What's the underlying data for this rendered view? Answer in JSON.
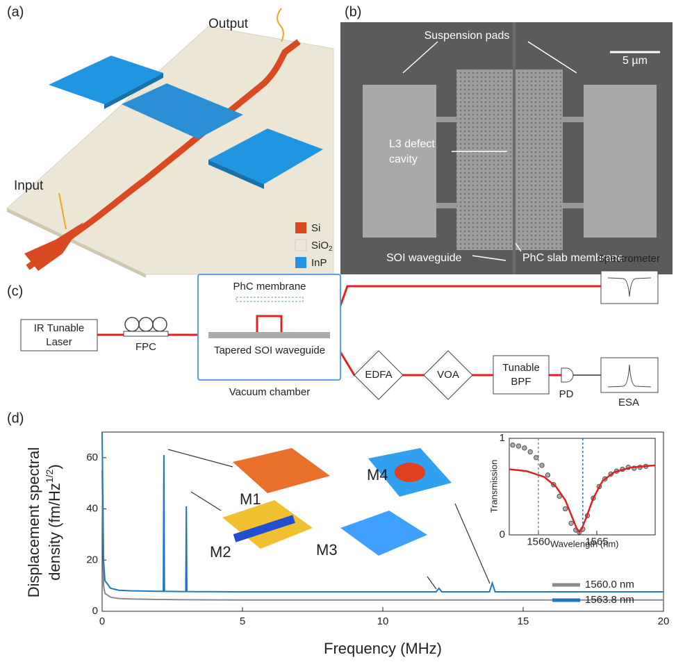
{
  "panel_a": {
    "label": "(a)",
    "output": "Output",
    "input": "Input",
    "legend": [
      {
        "text": "Si"
      },
      {
        "text": "SiO",
        "sub": "2"
      },
      {
        "text": "InP"
      }
    ]
  },
  "panel_b": {
    "label": "(b)",
    "scale_bar": "5 µm",
    "suspension_pads": "Suspension pads",
    "cavity_line1": "L3 defect",
    "cavity_line2": "cavity",
    "waveguide": "SOI waveguide",
    "membrane": "PhC slab membrane"
  },
  "panel_c": {
    "label": "(c)",
    "laser_line1": "IR Tunable",
    "laser_line2": "Laser",
    "fpc": "FPC",
    "phc_membrane": "PhC membrane",
    "tapered_waveguide": "Tapered SOI waveguide",
    "vacuum_chamber": "Vacuum chamber",
    "edfa": "EDFA",
    "voa": "VOA",
    "bpf_line1": "Tunable",
    "bpf_line2": "BPF",
    "pd": "PD",
    "esa": "ESA",
    "spectrometer": "Spectrometer"
  },
  "panel_d": {
    "label": "(d)",
    "modes": [
      "M1",
      "M2",
      "M3",
      "M4"
    ]
  },
  "chart_data": [
    {
      "type": "line",
      "xlabel": "Frequency (MHz)",
      "ylabel_line1": "Displacement spectral",
      "ylabel_line2": "density (fm/Hz",
      "ylabel_sup": "1/2",
      "ylabel_end": ")",
      "x": [
        0,
        0.05,
        0.1,
        0.3,
        0.6,
        1,
        2,
        2.18,
        2.2,
        2.22,
        2.9,
        2.98,
        3.0,
        3.02,
        5,
        8,
        11.9,
        12,
        12.1,
        13.8,
        13.9,
        14,
        17,
        20
      ],
      "series": [
        {
          "name": "1560.0 nm",
          "color": "#8a8a8a",
          "values": [
            55,
            10,
            7,
            5.5,
            5,
            4.8,
            4.6,
            4.6,
            4.6,
            4.6,
            4.5,
            4.5,
            4.5,
            4.5,
            4.4,
            4.4,
            4.4,
            4.4,
            4.4,
            4.4,
            4.4,
            4.4,
            4.4,
            4.4
          ]
        },
        {
          "name": "1563.8 nm",
          "color": "#1f77c0",
          "values": [
            70,
            20,
            12,
            9,
            8.2,
            8,
            7.8,
            7.8,
            61,
            7.8,
            7.7,
            7.7,
            41,
            7.7,
            7.6,
            7.6,
            7.6,
            9,
            7.6,
            7.6,
            11,
            7.6,
            7.6,
            7.6
          ]
        }
      ],
      "xlim": [
        0,
        20
      ],
      "xticks": [
        0,
        5,
        10,
        15,
        20
      ],
      "ylim": [
        0,
        70
      ],
      "yticks": [
        0,
        20,
        40,
        60
      ],
      "legend": "lower right"
    },
    {
      "type": "scatter",
      "xlabel": "Wavelength (nm)",
      "ylabel": "Transmission",
      "x": [
        1557.8,
        1558.3,
        1558.8,
        1559.3,
        1559.8,
        1560.3,
        1560.8,
        1561.3,
        1561.8,
        1562.3,
        1562.8,
        1563.2,
        1563.5,
        1563.8,
        1564.2,
        1564.7,
        1565.2,
        1565.7,
        1566.2,
        1566.7,
        1567.2,
        1567.7,
        1568.2,
        1568.7,
        1569.2
      ],
      "values": [
        0.93,
        0.92,
        0.9,
        0.86,
        0.8,
        0.72,
        0.62,
        0.52,
        0.4,
        0.27,
        0.12,
        0.05,
        0.03,
        0.06,
        0.2,
        0.38,
        0.5,
        0.58,
        0.63,
        0.66,
        0.68,
        0.7,
        0.69,
        0.7,
        0.71
      ],
      "color": "#555555",
      "fit": {
        "color": "#e02020",
        "x": [
          1557.5,
          1559,
          1560.5,
          1561.5,
          1562.3,
          1562.9,
          1563.3,
          1563.5,
          1563.7,
          1564.1,
          1564.7,
          1565.5,
          1566.5,
          1568,
          1570
        ],
        "values": [
          0.68,
          0.66,
          0.6,
          0.5,
          0.36,
          0.18,
          0.06,
          0.03,
          0.06,
          0.18,
          0.38,
          0.56,
          0.65,
          0.7,
          0.72
        ]
      },
      "vlines": [
        {
          "x": 1560.0,
          "color": "#888888"
        },
        {
          "x": 1563.8,
          "color": "#1f77c0"
        }
      ],
      "xlim": [
        1557.5,
        1570
      ],
      "xticks": [
        1560,
        1565
      ],
      "ylim": [
        0,
        1
      ],
      "yticks": [
        0,
        1
      ]
    }
  ]
}
